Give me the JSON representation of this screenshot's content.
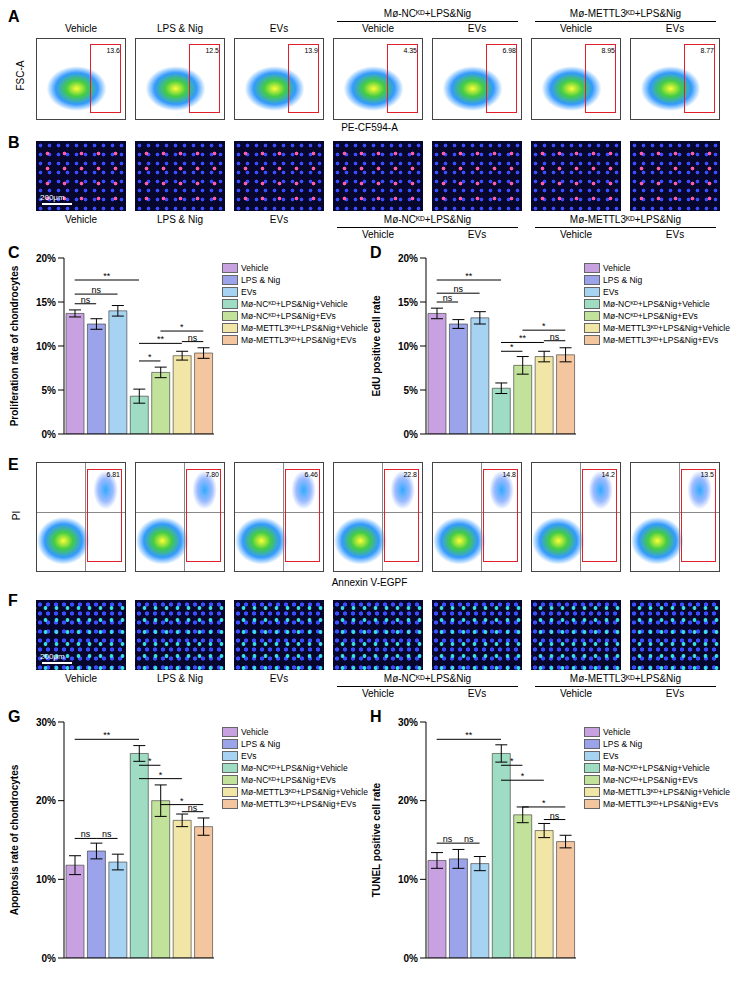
{
  "chart_data": [
    {
      "type": "bar",
      "panel": "C",
      "y_label": "Proliferation rate of chondrocytes",
      "categories": [
        "Vehicle",
        "LPS & Nig",
        "EVs",
        "Mø-NCᴷᴰ+LPS&Nig+Vehicle",
        "Mø-NCᴷᴰ+LPS&Nig+EVs",
        "Mø-METTL3ᴷᴰ+LPS&Nig+Vehicle",
        "Mø-METTL3ᴷᴰ+LPS&Nig+EVs"
      ],
      "values": [
        13.7,
        12.5,
        14.0,
        4.3,
        7.0,
        8.9,
        9.2
      ],
      "errors": [
        0.4,
        0.6,
        0.6,
        0.8,
        0.6,
        0.5,
        0.6
      ],
      "colors": [
        "#c8a2e0",
        "#9ba4ea",
        "#a7d3f2",
        "#9fdcc4",
        "#c2e29b",
        "#f1e6a6",
        "#f3c69f"
      ],
      "ylim": [
        0,
        20
      ],
      "yticks": [
        {
          "value": 0,
          "label": "0%"
        },
        {
          "value": 5,
          "label": "5%"
        },
        {
          "value": 10,
          "label": "10%"
        },
        {
          "value": 15,
          "label": "15%"
        },
        {
          "value": 20,
          "label": "20%"
        }
      ],
      "tick_labels": "y",
      "legend": "right",
      "annotations": [
        {
          "from": 0,
          "to": 3,
          "y": 17.5,
          "label": "**"
        },
        {
          "from": 0,
          "to": 2,
          "y": 15.9,
          "label": "ns"
        },
        {
          "from": 0,
          "to": 1,
          "y": 14.8,
          "label": "ns"
        },
        {
          "from": 3,
          "to": 4,
          "y": 8.3,
          "label": "*"
        },
        {
          "from": 3,
          "to": 5,
          "y": 10.3,
          "label": "**"
        },
        {
          "from": 4,
          "to": 6,
          "y": 11.7,
          "label": "*"
        },
        {
          "from": 5,
          "to": 6,
          "y": 10.5,
          "label": "ns"
        }
      ]
    },
    {
      "type": "bar",
      "panel": "D",
      "y_label": "EdU positive cell rate",
      "categories": [
        "Vehicle",
        "LPS & Nig",
        "EVs",
        "Mø-NCᴷᴰ+LPS&Nig+Vehicle",
        "Mø-NCᴷᴰ+LPS&Nig+EVs",
        "Mø-METTL3ᴷᴰ+LPS&Nig+Vehicle",
        "Mø-METTL3ᴷᴰ+LPS&Nig+EVs"
      ],
      "values": [
        13.7,
        12.5,
        13.2,
        5.2,
        7.8,
        8.8,
        9.0
      ],
      "errors": [
        0.6,
        0.5,
        0.7,
        0.6,
        1.0,
        0.6,
        0.8
      ],
      "colors": [
        "#c8a2e0",
        "#9ba4ea",
        "#a7d3f2",
        "#9fdcc4",
        "#c2e29b",
        "#f1e6a6",
        "#f3c69f"
      ],
      "ylim": [
        0,
        20
      ],
      "yticks": [
        {
          "value": 0,
          "label": "0%"
        },
        {
          "value": 5,
          "label": "5%"
        },
        {
          "value": 10,
          "label": "10%"
        },
        {
          "value": 15,
          "label": "15%"
        },
        {
          "value": 20,
          "label": "20%"
        }
      ],
      "tick_labels": "y",
      "legend": "right",
      "annotations": [
        {
          "from": 0,
          "to": 3,
          "y": 17.5,
          "label": "**"
        },
        {
          "from": 0,
          "to": 2,
          "y": 16.0,
          "label": "ns"
        },
        {
          "from": 0,
          "to": 1,
          "y": 15.0,
          "label": "ns"
        },
        {
          "from": 3,
          "to": 4,
          "y": 9.4,
          "label": "*"
        },
        {
          "from": 3,
          "to": 5,
          "y": 10.4,
          "label": "**"
        },
        {
          "from": 4,
          "to": 6,
          "y": 11.8,
          "label": "*"
        },
        {
          "from": 5,
          "to": 6,
          "y": 10.6,
          "label": "ns"
        }
      ]
    },
    {
      "type": "bar",
      "panel": "G",
      "y_label": "Apoptosis rate of chondrocytes",
      "categories": [
        "Vehicle",
        "LPS & Nig",
        "EVs",
        "Mø-NCᴷᴰ+LPS&Nig+Vehicle",
        "Mø-NCᴷᴰ+LPS&Nig+EVs",
        "Mø-METTL3ᴷᴰ+LPS&Nig+Vehicle",
        "Mø-METTL3ᴷᴰ+LPS&Nig+EVs"
      ],
      "values": [
        11.8,
        13.6,
        12.2,
        26.0,
        20.0,
        17.5,
        16.7
      ],
      "errors": [
        1.2,
        1.0,
        1.0,
        1.0,
        2.0,
        0.8,
        1.1
      ],
      "colors": [
        "#c8a2e0",
        "#9ba4ea",
        "#a7d3f2",
        "#9fdcc4",
        "#c2e29b",
        "#f1e6a6",
        "#f3c69f"
      ],
      "ylim": [
        0,
        30
      ],
      "yticks": [
        {
          "value": 0,
          "label": "0%"
        },
        {
          "value": 10,
          "label": "10%"
        },
        {
          "value": 20,
          "label": "20%"
        },
        {
          "value": 30,
          "label": "30%"
        }
      ],
      "tick_labels": "y",
      "legend": "right",
      "annotations": [
        {
          "from": 0,
          "to": 3,
          "y": 27.8,
          "label": "**"
        },
        {
          "from": 0,
          "to": 1,
          "y": 15.2,
          "label": "ns"
        },
        {
          "from": 1,
          "to": 2,
          "y": 15.2,
          "label": "ns"
        },
        {
          "from": 3,
          "to": 4,
          "y": 24.5,
          "label": "*"
        },
        {
          "from": 3,
          "to": 5,
          "y": 22.8,
          "label": "*"
        },
        {
          "from": 4,
          "to": 6,
          "y": 19.5,
          "label": "*"
        },
        {
          "from": 5,
          "to": 6,
          "y": 18.6,
          "label": "ns"
        }
      ]
    },
    {
      "type": "bar",
      "panel": "H",
      "y_label": "TUNEL positive cell rate",
      "categories": [
        "Vehicle",
        "LPS & Nig",
        "EVs",
        "Mø-NCᴷᴰ+LPS&Nig+Vehicle",
        "Mø-NCᴷᴰ+LPS&Nig+EVs",
        "Mø-METTL3ᴷᴰ+LPS&Nig+Vehicle",
        "Mø-METTL3ᴷᴰ+LPS&Nig+EVs"
      ],
      "values": [
        12.4,
        12.6,
        12.0,
        26.0,
        18.2,
        16.2,
        14.8
      ],
      "errors": [
        1.0,
        1.2,
        0.9,
        1.1,
        1.0,
        0.9,
        0.8
      ],
      "colors": [
        "#c8a2e0",
        "#9ba4ea",
        "#a7d3f2",
        "#9fdcc4",
        "#c2e29b",
        "#f1e6a6",
        "#f3c69f"
      ],
      "ylim": [
        0,
        30
      ],
      "yticks": [
        {
          "value": 0,
          "label": "0%"
        },
        {
          "value": 10,
          "label": "10%"
        },
        {
          "value": 20,
          "label": "20%"
        },
        {
          "value": 30,
          "label": "30%"
        }
      ],
      "tick_labels": "y",
      "legend": "right",
      "annotations": [
        {
          "from": 0,
          "to": 3,
          "y": 27.8,
          "label": "**"
        },
        {
          "from": 0,
          "to": 1,
          "y": 14.6,
          "label": "ns"
        },
        {
          "from": 1,
          "to": 2,
          "y": 14.6,
          "label": "ns"
        },
        {
          "from": 3,
          "to": 4,
          "y": 24.5,
          "label": "*"
        },
        {
          "from": 3,
          "to": 5,
          "y": 22.6,
          "label": "*"
        },
        {
          "from": 4,
          "to": 6,
          "y": 19.2,
          "label": "*"
        },
        {
          "from": 5,
          "to": 6,
          "y": 17.6,
          "label": "ns"
        }
      ]
    }
  ],
  "figure": {
    "A": {
      "panel": "A",
      "y_label": "FSC-A",
      "x_label": "PE-CF594-A",
      "gates": [
        "13.6",
        "12.5",
        "13.9",
        "4.35",
        "6.98",
        "8.95",
        "8.77"
      ]
    },
    "B": {
      "panel": "B",
      "scale_bar": "200μm"
    },
    "E": {
      "panel": "E",
      "y_label": "PI",
      "x_label": "Annexin V-EGPF",
      "gates": [
        "6.81",
        "7.80",
        "6.46",
        "22.8",
        "14.8",
        "14.2",
        "13.5"
      ]
    },
    "F": {
      "panel": "F",
      "scale_bar": "200μm"
    },
    "column_labels": [
      {
        "label": "Vehicle"
      },
      {
        "label": "LPS & Nig"
      },
      {
        "label": "EVs"
      },
      {
        "group": "Mø-NCᴷᴰ+LPS&Nig",
        "items": [
          "Vehicle",
          "EVs"
        ]
      },
      {
        "group": "Mø-METTL3ᴷᴰ+LPS&Nig",
        "items": [
          "Vehicle",
          "EVs"
        ]
      }
    ]
  }
}
